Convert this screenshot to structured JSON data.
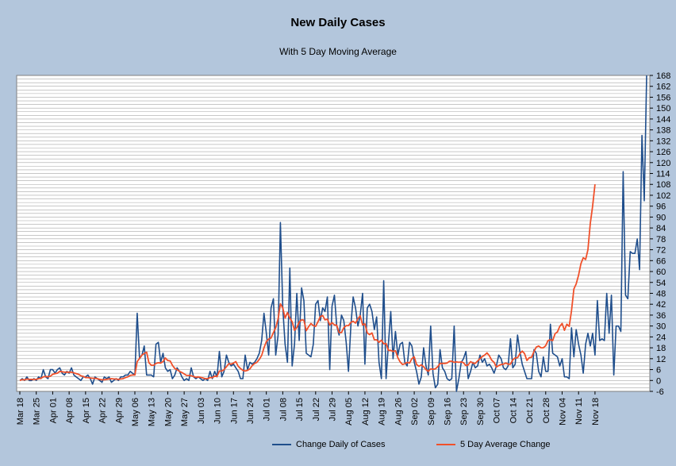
{
  "chart_data": {
    "type": "line",
    "title": "New Daily Cases",
    "subtitle": "With 5 Day Moving Average",
    "xlabel": "",
    "ylabel": "",
    "y_axis_position": "right",
    "ylim": [
      -6,
      168
    ],
    "y_ticks": [
      -6,
      0,
      6,
      12,
      18,
      24,
      30,
      36,
      42,
      48,
      54,
      60,
      66,
      72,
      78,
      84,
      90,
      96,
      102,
      108,
      114,
      120,
      126,
      132,
      138,
      144,
      150,
      156,
      162,
      168
    ],
    "x_tick_labels": [
      "Mar 18",
      "Mar 25",
      "Apr 01",
      "Apr 08",
      "Apr 15",
      "Apr 22",
      "Apr 29",
      "May 06",
      "May 13",
      "May 20",
      "May 27",
      "Jun 03",
      "Jun 10",
      "Jun 17",
      "Jun 24",
      "Jul 01",
      "Jul 08",
      "Jul 15",
      "Jul 22",
      "Jul 29",
      "Aug 05",
      "Aug 12",
      "Aug 19",
      "Aug 26",
      "Sep 02",
      "Sep 09",
      "Sep 16",
      "Sep 23",
      "Sep 30",
      "Oct 07",
      "Oct 14",
      "Oct 21",
      "Oct 28",
      "Nov 04",
      "Nov 11",
      "Nov 18"
    ],
    "x_start": "Mar 18",
    "grid": "horizontal",
    "legend_position": "bottom",
    "series": [
      {
        "name": "Change Daily of Cases",
        "color": "#1f4e8c",
        "values": [
          0,
          1,
          0,
          2,
          0,
          0,
          1,
          0,
          2,
          1,
          6,
          2,
          1,
          6,
          6,
          4,
          6,
          7,
          4,
          3,
          5,
          4,
          7,
          3,
          2,
          1,
          0,
          2,
          2,
          3,
          1,
          -2,
          2,
          1,
          0,
          -1,
          2,
          1,
          2,
          -1,
          0,
          1,
          0,
          2,
          2,
          3,
          3,
          5,
          4,
          3,
          37,
          12,
          14,
          19,
          3,
          3,
          3,
          2,
          20,
          21,
          10,
          15,
          7,
          5,
          6,
          1,
          3,
          7,
          5,
          2,
          0,
          1,
          0,
          7,
          2,
          1,
          2,
          1,
          0,
          1,
          0,
          5,
          1,
          5,
          2,
          16,
          2,
          5,
          14,
          10,
          8,
          9,
          7,
          5,
          1,
          1,
          14,
          6,
          10,
          9,
          10,
          12,
          15,
          22,
          37,
          26,
          14,
          40,
          45,
          14,
          25,
          87,
          40,
          20,
          10,
          62,
          8,
          20,
          48,
          22,
          51,
          44,
          15,
          14,
          13,
          20,
          42,
          44,
          33,
          40,
          38,
          46,
          6,
          41,
          47,
          30,
          25,
          36,
          33,
          21,
          5,
          30,
          46,
          40,
          30,
          36,
          48,
          9,
          40,
          42,
          38,
          28,
          35,
          10,
          1,
          55,
          1,
          20,
          38,
          12,
          27,
          14,
          20,
          21,
          10,
          8,
          21,
          19,
          10,
          5,
          -2,
          2,
          18,
          8,
          3,
          30,
          4,
          -4,
          -2,
          17,
          7,
          5,
          1,
          0,
          1,
          30,
          -6,
          1,
          10,
          12,
          16,
          1,
          5,
          10,
          7,
          8,
          14,
          10,
          12,
          8,
          9,
          7,
          4,
          8,
          14,
          12,
          7,
          6,
          8,
          23,
          7,
          9,
          25,
          16,
          9,
          5,
          1,
          1,
          1,
          17,
          15,
          5,
          2,
          13,
          5,
          5,
          31,
          15,
          14,
          13,
          8,
          12,
          2,
          2,
          1,
          29,
          13,
          28,
          20,
          14,
          4,
          20,
          26,
          19,
          26,
          14,
          44,
          22,
          23,
          22,
          48,
          26,
          47,
          3,
          30,
          30,
          27,
          115,
          47,
          45,
          71,
          70,
          70,
          78,
          61,
          135,
          99,
          168
        ]
      },
      {
        "name": "5 Day Average Change",
        "color": "#f0502a",
        "values": [
          0,
          0.5,
          0.3,
          0.8,
          0.6,
          0.6,
          0.6,
          0.6,
          1.0,
          1.2,
          2.0,
          2.2,
          2.0,
          2.4,
          3.4,
          3.8,
          4.0,
          5.0,
          4.8,
          4.6,
          4.6,
          4.6,
          4.6,
          4.2,
          3.8,
          3.4,
          2.6,
          2.2,
          1.6,
          1.6,
          1.4,
          1.2,
          1.2,
          1.0,
          0.6,
          0.4,
          0.4,
          0.6,
          0.8,
          1.0,
          0.8,
          0.8,
          0.6,
          0.8,
          1.0,
          1.6,
          2.0,
          2.8,
          3.0,
          3.0,
          10.4,
          12.2,
          14.0,
          14.8,
          15.6,
          9.8,
          8.4,
          8.4,
          9.4,
          9.8,
          9.6,
          10.4,
          12.4,
          11.0,
          10.8,
          8.4,
          6.6,
          6.0,
          5.0,
          4.4,
          3.6,
          2.8,
          2.8,
          2.6,
          2.2,
          1.8,
          2.0,
          1.8,
          1.4,
          1.0,
          1.0,
          1.6,
          1.6,
          2.4,
          2.2,
          5.2,
          5.2,
          6.0,
          7.6,
          9.2,
          9.0,
          9.6,
          10.4,
          7.8,
          6.6,
          5.6,
          5.2,
          5.6,
          6.4,
          8.2,
          9.4,
          10.0,
          11.6,
          13.8,
          18.0,
          21.4,
          22.8,
          23.4,
          26.4,
          29.0,
          34.0,
          42.2,
          40.0,
          34.4,
          37.4,
          34.4,
          32.4,
          27.6,
          29.2,
          32.2,
          33.4,
          33.2,
          27.4,
          29.6,
          31.4,
          30.2,
          29.8,
          32.4,
          35.2,
          35.8,
          33.4,
          33.8,
          30.6,
          31.8,
          30.6,
          30.4,
          26.4,
          26.4,
          29.0,
          30.2,
          30.2,
          32.0,
          32.6,
          31.6,
          34.0,
          35.6,
          30.6,
          31.2,
          26.2,
          25.2,
          26.2,
          22.4,
          22.4,
          21.0,
          22.2,
          20.2,
          20.4,
          16.6,
          16.6,
          16.0,
          16.4,
          12.6,
          10.2,
          8.8,
          9.2,
          10.0,
          9.6,
          12.0,
          13.0,
          8.8,
          7.8,
          8.6,
          7.6,
          6.0,
          5.0,
          6.4,
          6.2,
          6.4,
          7.6,
          9.4,
          9.4,
          9.4,
          9.6,
          10.6,
          10.6,
          10.0,
          10.2,
          10.0,
          10.2,
          9.8,
          8.2,
          8.6,
          10.4,
          9.6,
          9.4,
          10.8,
          12.0,
          13.2,
          14.0,
          15.2,
          13.6,
          11.2,
          10.0,
          7.4,
          8.2,
          8.8,
          9.0,
          9.6,
          9.0,
          9.0,
          11.4,
          12.4,
          12.6,
          14.8,
          16.2,
          14.8,
          11.0,
          12.6,
          12.8,
          16.0,
          18.4,
          19.0,
          18.0,
          18.0,
          19.2,
          22.0,
          22.4,
          22.0,
          25.8,
          26.8,
          29.8,
          31.4,
          27.6,
          31.0,
          29.8,
          38.4,
          50.4,
          53.2,
          58.0,
          64.4,
          67.6,
          66.6,
          72.0,
          86.6,
          96.0,
          108.0
        ]
      }
    ]
  }
}
